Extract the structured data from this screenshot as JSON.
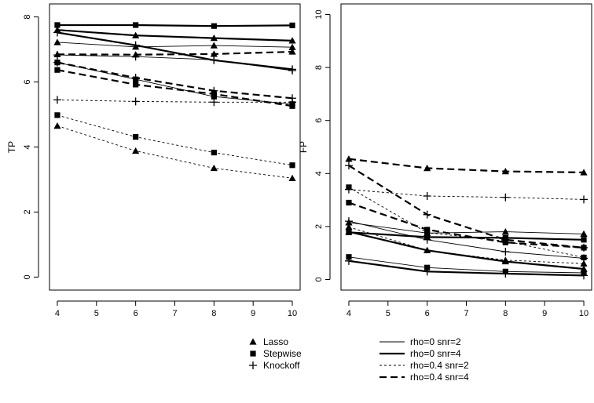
{
  "chart_data": [
    {
      "type": "line",
      "ylabel": "TP",
      "xlabel": "",
      "x": [
        4,
        6,
        8,
        10
      ],
      "xlim": [
        3.8,
        10.2
      ],
      "ylim": [
        -0.4,
        8.4
      ],
      "xticks": [
        "4",
        "5",
        "6",
        "7",
        "8",
        "9",
        "10"
      ],
      "yticks": [
        "0",
        "2",
        "4",
        "6",
        "8"
      ],
      "series": [
        {
          "method": "Lasso",
          "setting": "rho=0 snr=2",
          "values": [
            7.22,
            7.08,
            7.12,
            7.07
          ]
        },
        {
          "method": "Stepwise",
          "setting": "rho=0 snr=2",
          "values": [
            6.6,
            6.08,
            5.55,
            5.32
          ]
        },
        {
          "method": "Knockoff",
          "setting": "rho=0 snr=2",
          "values": [
            6.83,
            6.78,
            6.68,
            6.35
          ]
        },
        {
          "method": "Lasso",
          "setting": "rho=0 snr=4",
          "values": [
            7.6,
            7.43,
            7.35,
            7.27
          ]
        },
        {
          "method": "Stepwise",
          "setting": "rho=0 snr=4",
          "values": [
            7.75,
            7.75,
            7.72,
            7.74
          ]
        },
        {
          "method": "Knockoff",
          "setting": "rho=0 snr=4",
          "values": [
            7.52,
            7.13,
            6.67,
            6.39
          ]
        },
        {
          "method": "Lasso",
          "setting": "rho=0.4 snr=2",
          "values": [
            4.65,
            3.88,
            3.35,
            3.04
          ]
        },
        {
          "method": "Stepwise",
          "setting": "rho=0.4 snr=2",
          "values": [
            4.98,
            4.31,
            3.83,
            3.44
          ]
        },
        {
          "method": "Knockoff",
          "setting": "rho=0.4 snr=2",
          "values": [
            5.45,
            5.4,
            5.38,
            5.38
          ]
        },
        {
          "method": "Lasso",
          "setting": "rho=0.4 snr=4",
          "values": [
            6.85,
            6.84,
            6.86,
            6.93
          ]
        },
        {
          "method": "Stepwise",
          "setting": "rho=0.4 snr=4",
          "values": [
            6.37,
            5.92,
            5.63,
            5.26
          ]
        },
        {
          "method": "Knockoff",
          "setting": "rho=0.4 snr=4",
          "values": [
            6.6,
            6.13,
            5.73,
            5.5
          ]
        }
      ]
    },
    {
      "type": "line",
      "ylabel": "FP",
      "xlabel": "",
      "x": [
        4,
        6,
        8,
        10
      ],
      "xlim": [
        3.8,
        10.2
      ],
      "ylim": [
        -0.4,
        10.4
      ],
      "xticks": [
        "4",
        "5",
        "6",
        "7",
        "8",
        "9",
        "10"
      ],
      "yticks": [
        "0",
        "2",
        "4",
        "6",
        "8",
        "10"
      ],
      "series": [
        {
          "method": "Lasso",
          "setting": "rho=0 snr=2",
          "values": [
            2.15,
            1.75,
            1.8,
            1.72
          ]
        },
        {
          "method": "Stepwise",
          "setting": "rho=0 snr=2",
          "values": [
            0.85,
            0.45,
            0.3,
            0.25
          ]
        },
        {
          "method": "Knockoff",
          "setting": "rho=0 snr=2",
          "values": [
            2.2,
            1.5,
            1.05,
            0.8
          ]
        },
        {
          "method": "Lasso",
          "setting": "rho=0 snr=4",
          "values": [
            1.8,
            1.1,
            0.68,
            0.4
          ]
        },
        {
          "method": "Stepwise",
          "setting": "rho=0 snr=4",
          "values": [
            1.78,
            1.6,
            1.57,
            1.5
          ]
        },
        {
          "method": "Knockoff",
          "setting": "rho=0 snr=4",
          "values": [
            0.7,
            0.3,
            0.22,
            0.15
          ]
        },
        {
          "method": "Lasso",
          "setting": "rho=0.4 snr=2",
          "values": [
            1.98,
            1.1,
            0.73,
            0.6
          ]
        },
        {
          "method": "Stepwise",
          "setting": "rho=0.4 snr=2",
          "values": [
            3.48,
            1.77,
            1.45,
            0.83
          ]
        },
        {
          "method": "Knockoff",
          "setting": "rho=0.4 snr=2",
          "values": [
            3.4,
            3.15,
            3.1,
            3.02
          ]
        },
        {
          "method": "Lasso",
          "setting": "rho=0.4 snr=4",
          "values": [
            4.55,
            4.2,
            4.08,
            4.04
          ]
        },
        {
          "method": "Stepwise",
          "setting": "rho=0.4 snr=4",
          "values": [
            2.9,
            1.88,
            1.4,
            1.2
          ]
        },
        {
          "method": "Knockoff",
          "setting": "rho=0.4 snr=4",
          "values": [
            4.3,
            2.45,
            1.5,
            1.2
          ]
        }
      ]
    }
  ],
  "legend": {
    "methods": [
      {
        "label": "Lasso",
        "marker": "triangle"
      },
      {
        "label": "Stepwise",
        "marker": "square"
      },
      {
        "label": "Knockoff",
        "marker": "plus"
      }
    ],
    "settings": [
      {
        "label": "rho=0 snr=2",
        "style": "thin-solid"
      },
      {
        "label": "rho=0 snr=4",
        "style": "thick-solid"
      },
      {
        "label": "rho=0.4 snr=2",
        "style": "thin-dashed"
      },
      {
        "label": "rho=0.4 snr=4",
        "style": "thick-dashed"
      }
    ]
  },
  "colors": {
    "ink": "#000000",
    "background": "#ffffff"
  }
}
